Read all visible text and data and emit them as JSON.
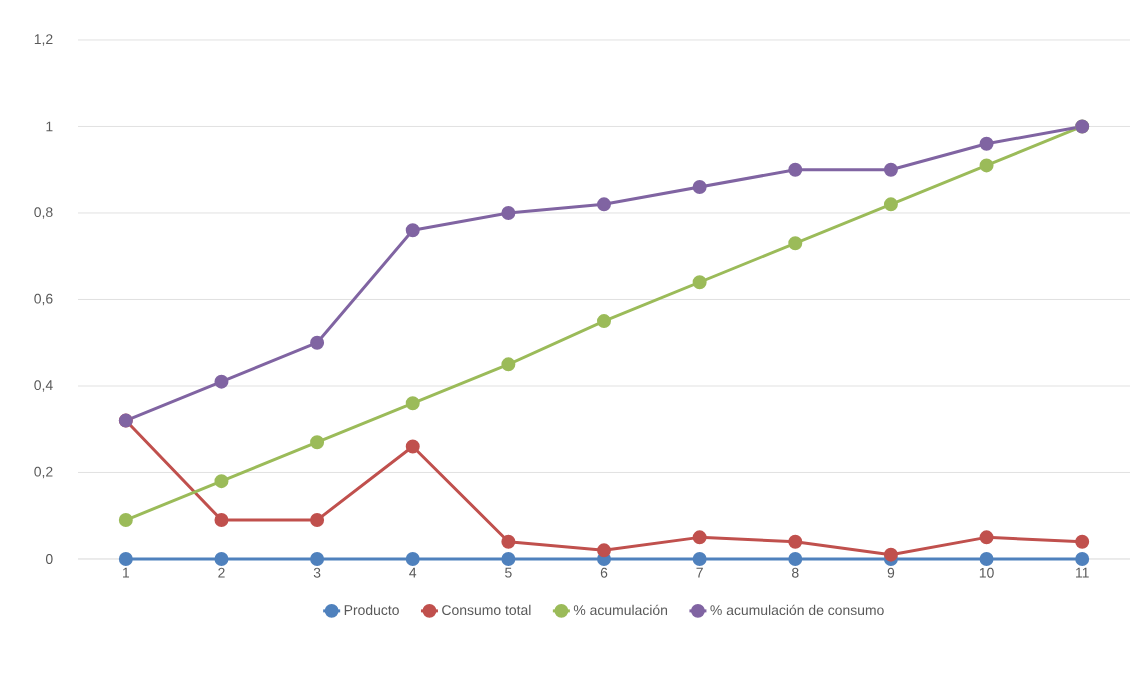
{
  "chart_data": {
    "type": "line",
    "categories": [
      "1",
      "2",
      "3",
      "4",
      "5",
      "6",
      "7",
      "8",
      "9",
      "10",
      "11"
    ],
    "series": [
      {
        "name": "Producto",
        "color": "#4f81bd",
        "values": [
          0,
          0,
          0,
          0,
          0,
          0,
          0,
          0,
          0,
          0,
          0
        ]
      },
      {
        "name": "Consumo total",
        "color": "#c0504d",
        "values": [
          0.32,
          0.09,
          0.09,
          0.26,
          0.04,
          0.02,
          0.05,
          0.04,
          0.01,
          0.05,
          0.04
        ]
      },
      {
        "name": "% acumulación",
        "color": "#9bbb59",
        "values": [
          0.09,
          0.18,
          0.27,
          0.36,
          0.45,
          0.55,
          0.64,
          0.73,
          0.82,
          0.91,
          1
        ]
      },
      {
        "name": "% acumulación de consumo",
        "color": "#8064a2",
        "values": [
          0.32,
          0.41,
          0.5,
          0.76,
          0.8,
          0.82,
          0.86,
          0.9,
          0.9,
          0.96,
          1
        ]
      }
    ],
    "ylim": [
      0,
      1.2
    ],
    "yticks": [
      0,
      {
        "value": 0.2,
        "label": "0,2"
      },
      {
        "value": 0.4,
        "label": "0,4"
      },
      {
        "value": 0.6,
        "label": "0,6"
      },
      {
        "value": 0.8,
        "label": "0,8"
      },
      1,
      {
        "value": 1.2,
        "label": "1,2"
      }
    ],
    "grid": "y",
    "legend": "bottom",
    "marker": "circle",
    "line_style": "solid"
  }
}
